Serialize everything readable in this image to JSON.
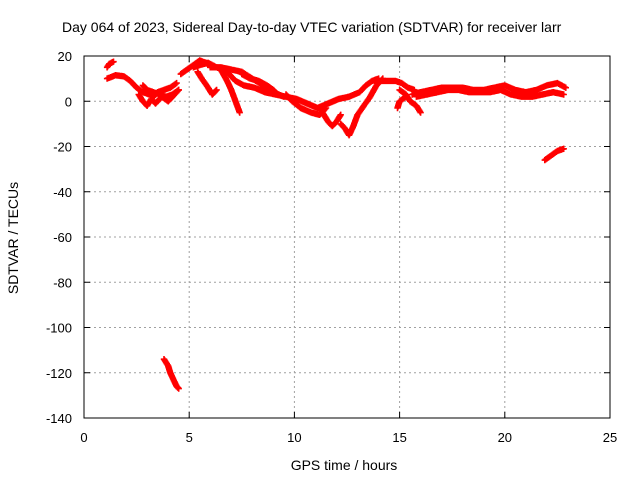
{
  "chart_data": {
    "type": "scatter",
    "title": "Day 064 of 2023, Sidereal Day-to-day VTEC variation (SDTVAR) for receiver larr",
    "xlabel": "GPS time / hours",
    "ylabel": "SDTVAR / TECUs",
    "xlim": [
      0,
      25
    ],
    "ylim": [
      -140,
      20
    ],
    "x_ticks": [
      0,
      5,
      10,
      15,
      20,
      25
    ],
    "y_ticks": [
      -140,
      -120,
      -100,
      -80,
      -60,
      -40,
      -20,
      0,
      20
    ],
    "x_tick_labels": [
      "0",
      "5",
      "10",
      "15",
      "20",
      "25"
    ],
    "y_tick_labels": [
      "-140",
      "-120",
      "-100",
      "-80",
      "-60",
      "-40",
      "-20",
      "0",
      "20"
    ],
    "grid": true,
    "marker": "+",
    "series_color": "#ff0000",
    "segments": [
      [
        [
          1.1,
          15
        ],
        [
          1.2,
          16.5
        ],
        [
          1.4,
          17.5
        ]
      ],
      [
        [
          1.1,
          10
        ],
        [
          1.5,
          11.5
        ],
        [
          1.9,
          11
        ],
        [
          2.2,
          9
        ],
        [
          2.5,
          6
        ],
        [
          2.8,
          4
        ],
        [
          3.1,
          3
        ],
        [
          3.3,
          2
        ],
        [
          3.5,
          4
        ],
        [
          3.8,
          5
        ],
        [
          4.1,
          6
        ],
        [
          4.4,
          8
        ]
      ],
      [
        [
          2.6,
          3
        ],
        [
          2.8,
          0
        ],
        [
          3.0,
          -2
        ],
        [
          3.2,
          1
        ],
        [
          3.4,
          -1
        ],
        [
          3.7,
          2
        ],
        [
          4.0,
          0
        ],
        [
          4.3,
          3
        ],
        [
          4.5,
          5
        ]
      ],
      [
        [
          2.8,
          7
        ],
        [
          3.0,
          5
        ],
        [
          3.3,
          4
        ],
        [
          3.6,
          3
        ],
        [
          3.9,
          2
        ],
        [
          4.2,
          3
        ],
        [
          4.5,
          5
        ]
      ],
      [
        [
          4.6,
          12
        ],
        [
          4.9,
          14
        ],
        [
          5.2,
          16
        ],
        [
          5.5,
          18
        ],
        [
          5.8,
          17
        ],
        [
          6.1,
          15
        ]
      ],
      [
        [
          5.4,
          13
        ],
        [
          5.6,
          10
        ],
        [
          5.9,
          6
        ],
        [
          6.1,
          3
        ],
        [
          6.3,
          5
        ]
      ],
      [
        [
          5.2,
          15
        ],
        [
          5.5,
          16
        ],
        [
          5.9,
          17
        ],
        [
          6.3,
          15
        ],
        [
          6.8,
          13
        ],
        [
          7.2,
          9
        ],
        [
          7.6,
          7
        ],
        [
          8.1,
          6
        ],
        [
          8.6,
          4
        ],
        [
          9.1,
          3
        ],
        [
          9.6,
          2
        ],
        [
          10.1,
          1
        ],
        [
          10.6,
          -1
        ],
        [
          11.1,
          -3
        ],
        [
          11.6,
          -1
        ],
        [
          12.1,
          1
        ],
        [
          12.6,
          2
        ],
        [
          13.1,
          4
        ],
        [
          13.4,
          7
        ],
        [
          13.7,
          9
        ],
        [
          14.0,
          10
        ]
      ],
      [
        [
          6.0,
          15
        ],
        [
          6.5,
          15
        ],
        [
          7.0,
          14
        ],
        [
          7.5,
          13
        ],
        [
          8.0,
          10
        ],
        [
          8.5,
          7
        ],
        [
          9.0,
          4
        ],
        [
          9.5,
          2
        ]
      ],
      [
        [
          6.5,
          14
        ],
        [
          6.8,
          9
        ],
        [
          7.0,
          5
        ],
        [
          7.2,
          0
        ],
        [
          7.4,
          -5
        ]
      ],
      [
        [
          7.5,
          12
        ],
        [
          7.9,
          10
        ],
        [
          8.3,
          9
        ],
        [
          8.7,
          7
        ],
        [
          9.0,
          5
        ],
        [
          9.2,
          3
        ]
      ],
      [
        [
          9.6,
          3
        ],
        [
          9.9,
          0
        ],
        [
          10.3,
          -3
        ],
        [
          10.8,
          -5
        ],
        [
          11.2,
          -6
        ],
        [
          11.5,
          -3
        ]
      ],
      [
        [
          11.2,
          -3
        ],
        [
          11.4,
          -6
        ],
        [
          11.6,
          -9
        ],
        [
          11.8,
          -11
        ],
        [
          12.0,
          -9
        ],
        [
          12.2,
          -6
        ]
      ],
      [
        [
          12.2,
          -10
        ],
        [
          12.4,
          -12
        ],
        [
          12.6,
          -15
        ],
        [
          12.8,
          -11
        ],
        [
          13.0,
          -6
        ],
        [
          13.3,
          -2
        ],
        [
          13.6,
          2
        ],
        [
          13.9,
          7
        ],
        [
          14.2,
          10
        ]
      ],
      [
        [
          13.8,
          9
        ],
        [
          14.3,
          9
        ],
        [
          14.8,
          9
        ],
        [
          15.1,
          8
        ],
        [
          15.4,
          6
        ],
        [
          15.7,
          5
        ]
      ],
      [
        [
          15.0,
          5
        ],
        [
          15.3,
          3
        ],
        [
          15.5,
          0
        ],
        [
          15.8,
          -2
        ],
        [
          16.0,
          -5
        ]
      ],
      [
        [
          15.3,
          2
        ],
        [
          15.0,
          0
        ],
        [
          14.9,
          -3
        ]
      ],
      [
        [
          15.6,
          3
        ],
        [
          16.0,
          4
        ],
        [
          16.5,
          5
        ],
        [
          17.0,
          6
        ],
        [
          17.5,
          6
        ],
        [
          18.0,
          6
        ],
        [
          18.5,
          5
        ],
        [
          19.0,
          5
        ],
        [
          19.5,
          6
        ],
        [
          20.0,
          7
        ],
        [
          20.5,
          5
        ],
        [
          21.0,
          4
        ],
        [
          21.5,
          5
        ],
        [
          22.0,
          7
        ],
        [
          22.5,
          8
        ],
        [
          22.9,
          6
        ]
      ],
      [
        [
          15.8,
          2
        ],
        [
          16.3,
          3
        ],
        [
          16.8,
          4
        ],
        [
          17.3,
          5
        ],
        [
          17.8,
          5
        ],
        [
          18.3,
          4
        ],
        [
          18.8,
          4
        ],
        [
          19.3,
          4
        ],
        [
          19.8,
          5
        ],
        [
          20.3,
          3
        ],
        [
          20.8,
          2
        ],
        [
          21.3,
          2
        ],
        [
          21.8,
          3
        ],
        [
          22.3,
          4
        ],
        [
          22.8,
          3
        ]
      ],
      [
        [
          21.9,
          -26
        ],
        [
          22.2,
          -24
        ],
        [
          22.5,
          -22
        ],
        [
          22.8,
          -21
        ]
      ],
      [
        [
          3.8,
          -114
        ],
        [
          4.0,
          -117
        ],
        [
          4.1,
          -120
        ],
        [
          4.2,
          -122
        ],
        [
          4.3,
          -124
        ],
        [
          4.4,
          -126
        ],
        [
          4.5,
          -127
        ]
      ]
    ]
  }
}
